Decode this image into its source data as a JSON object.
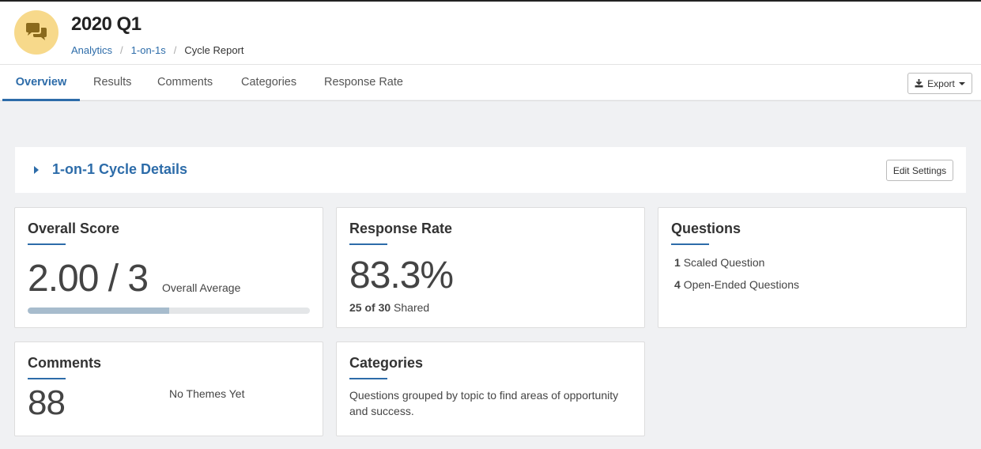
{
  "header": {
    "title": "2020 Q1",
    "breadcrumb": [
      "Analytics",
      "1-on-1s",
      "Cycle Report"
    ],
    "avatar_icon": "chat-bubbles-icon"
  },
  "tabs": [
    {
      "label": "Overview",
      "active": true
    },
    {
      "label": "Results",
      "active": false
    },
    {
      "label": "Comments",
      "active": false
    },
    {
      "label": "Categories",
      "active": false
    },
    {
      "label": "Response Rate",
      "active": false
    }
  ],
  "toolbar": {
    "export_label": "Export"
  },
  "details": {
    "title": "1-on-1 Cycle Details",
    "edit_label": "Edit Settings"
  },
  "cards": {
    "overall_score": {
      "title": "Overall Score",
      "score": "2.00 / 3",
      "caption": "Overall Average",
      "progress_fraction": 0.5
    },
    "response_rate": {
      "title": "Response Rate",
      "value": "83.3%",
      "shared_count": "25 of 30",
      "shared_label": "Shared"
    },
    "questions": {
      "title": "Questions",
      "items": [
        {
          "count": "1",
          "label": "Scaled Question"
        },
        {
          "count": "4",
          "label": "Open-Ended Questions"
        }
      ]
    },
    "comments": {
      "title": "Comments",
      "value": "88",
      "themes": "No Themes Yet"
    },
    "categories": {
      "title": "Categories",
      "description": "Questions grouped by topic to find areas of opportunity and success."
    }
  },
  "colors": {
    "accent": "#2d6ca9",
    "avatar_bg": "#f7d98b",
    "avatar_icon": "#8a6a1c",
    "progress_fill": "#a7bccd"
  }
}
